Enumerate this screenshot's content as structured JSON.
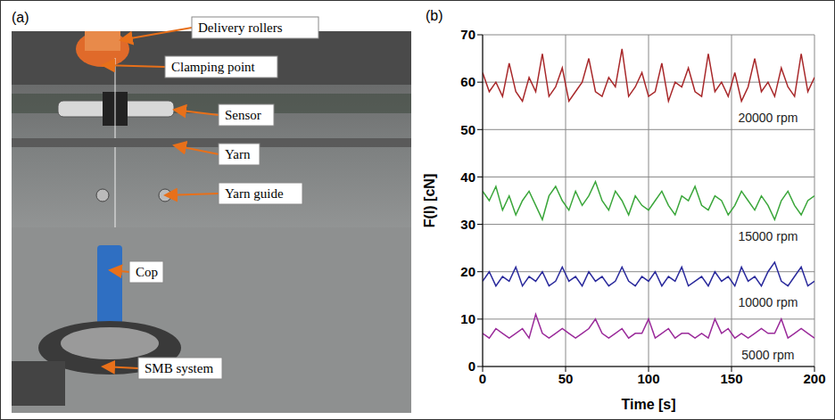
{
  "photo_panel": {
    "panel": "(a)",
    "labels": [
      "Delivery rollers",
      "Clamping point",
      "Sensor",
      "Yarn",
      "Yarn guide",
      "Cop",
      "SMB system"
    ]
  },
  "chart_data": {
    "type": "line",
    "panel": "(b)",
    "x_label": "Time [s]",
    "y_label": "F(l) [cN]",
    "xlim": [
      0,
      200
    ],
    "xticks": [
      0,
      50,
      100,
      150,
      200
    ],
    "ylim": [
      0,
      70
    ],
    "yticks": [
      0,
      10,
      20,
      30,
      40,
      50,
      60,
      70
    ],
    "grid": true,
    "x": [
      0,
      4,
      8,
      12,
      16,
      20,
      24,
      28,
      32,
      36,
      40,
      44,
      48,
      52,
      56,
      60,
      64,
      68,
      72,
      76,
      80,
      84,
      88,
      92,
      96,
      100,
      104,
      108,
      112,
      116,
      120,
      124,
      128,
      132,
      136,
      140,
      144,
      148,
      152,
      156,
      160,
      164,
      168,
      172,
      176,
      180,
      184,
      188,
      192,
      196,
      200
    ],
    "series": [
      {
        "name": "20000 rpm",
        "color": "#a8282a",
        "values": [
          62,
          58,
          60,
          57,
          64,
          58,
          56,
          61,
          58,
          66,
          57,
          59,
          63,
          56,
          58,
          60,
          65,
          58,
          57,
          61,
          59,
          67,
          57,
          59,
          62,
          57,
          58,
          64,
          56,
          60,
          59,
          63,
          58,
          57,
          66,
          58,
          60,
          57,
          62,
          56,
          59,
          65,
          58,
          60,
          57,
          63,
          59,
          57,
          66,
          58,
          61
        ]
      },
      {
        "name": "15000 rpm",
        "color": "#3aa63a",
        "values": [
          37,
          35,
          38,
          33,
          36,
          32,
          35,
          37,
          34,
          31,
          36,
          38,
          35,
          33,
          37,
          34,
          36,
          39,
          35,
          33,
          37,
          35,
          32,
          36,
          34,
          33,
          35,
          37,
          34,
          32,
          36,
          35,
          38,
          34,
          33,
          36,
          35,
          32,
          34,
          37,
          35,
          33,
          36,
          34,
          31,
          35,
          37,
          34,
          32,
          35,
          36
        ]
      },
      {
        "name": "10000 rpm",
        "color": "#2a2a9c",
        "values": [
          18,
          20,
          17,
          19,
          18,
          21,
          17,
          19,
          18,
          20,
          17,
          18,
          21,
          18,
          19,
          17,
          20,
          18,
          19,
          17,
          18,
          21,
          18,
          17,
          19,
          18,
          20,
          17,
          19,
          18,
          21,
          17,
          18,
          19,
          17,
          20,
          18,
          19,
          17,
          21,
          18,
          19,
          17,
          20,
          22,
          18,
          17,
          19,
          21,
          17,
          18
        ]
      },
      {
        "name": "5000 rpm",
        "color": "#9a2a9a",
        "values": [
          7,
          6,
          8,
          7,
          6,
          7,
          8,
          6,
          11,
          7,
          6,
          7,
          8,
          7,
          6,
          7,
          8,
          10,
          7,
          6,
          7,
          8,
          6,
          7,
          7,
          10,
          6,
          7,
          8,
          6,
          7,
          7,
          6,
          7,
          6,
          10,
          7,
          8,
          6,
          7,
          6,
          7,
          8,
          7,
          7,
          10,
          6,
          7,
          8,
          7,
          6
        ]
      }
    ]
  }
}
